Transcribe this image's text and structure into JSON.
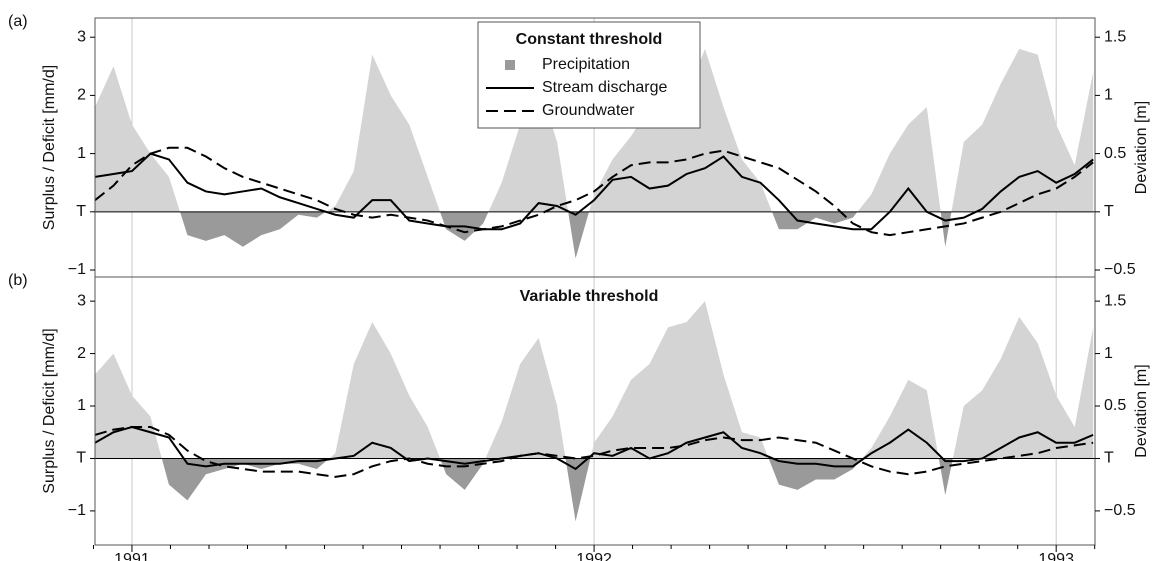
{
  "chart_data": [
    {
      "type": "line",
      "panel_label": "(a)",
      "title": "Constant threshold",
      "legend": true,
      "ylabel": "Surplus / Deficit [mm/d]",
      "y2label": "Deviation [m]",
      "xlim": [
        1990.92,
        1993.084
      ],
      "xgrid_lines": [
        1991,
        1992,
        1993
      ],
      "ylim": [
        -1.12,
        3.33
      ],
      "yticks": [
        {
          "value": -1,
          "label": "−1"
        },
        {
          "value": 0,
          "label": "T"
        },
        1,
        2,
        3
      ],
      "y2lim": [
        -0.56,
        1.665
      ],
      "y2ticks": [
        {
          "value": -0.5,
          "label": "−0.5"
        },
        {
          "value": 0,
          "label": "T"
        },
        0.5,
        1,
        1.5
      ],
      "x": [
        1990.92,
        1990.96,
        1991.0,
        1991.04,
        1991.08,
        1991.12,
        1991.16,
        1991.2,
        1991.24,
        1991.28,
        1991.32,
        1991.36,
        1991.4,
        1991.44,
        1991.48,
        1991.52,
        1991.56,
        1991.6,
        1991.64,
        1991.68,
        1991.72,
        1991.76,
        1991.8,
        1991.84,
        1991.88,
        1991.92,
        1991.96,
        1992.0,
        1992.04,
        1992.08,
        1992.12,
        1992.16,
        1992.2,
        1992.24,
        1992.28,
        1992.32,
        1992.36,
        1992.4,
        1992.44,
        1992.48,
        1992.52,
        1992.56,
        1992.6,
        1992.64,
        1992.68,
        1992.72,
        1992.76,
        1992.8,
        1992.84,
        1992.88,
        1992.92,
        1992.96,
        1993.0,
        1993.04,
        1993.08
      ],
      "series": [
        {
          "name": "Precipitation",
          "style": "area",
          "color": "#d4d4d4",
          "negative_color": "#9a9a9a",
          "values": [
            1.8,
            2.5,
            1.5,
            1.0,
            0.6,
            -0.4,
            -0.5,
            -0.4,
            -0.6,
            -0.4,
            -0.3,
            -0.05,
            -0.1,
            0.1,
            0.7,
            2.7,
            2.0,
            1.5,
            0.6,
            -0.3,
            -0.5,
            -0.2,
            0.5,
            1.5,
            2.2,
            1.2,
            -0.8,
            0.3,
            0.9,
            1.3,
            1.8,
            2.3,
            2.0,
            2.8,
            1.8,
            0.9,
            0.5,
            -0.3,
            -0.3,
            -0.1,
            -0.2,
            -0.1,
            0.3,
            1.0,
            1.5,
            1.8,
            -0.6,
            1.2,
            1.5,
            2.2,
            2.8,
            2.7,
            1.5,
            0.8,
            2.4
          ]
        },
        {
          "name": "Stream discharge",
          "style": "solid",
          "color": "#000000",
          "values": [
            0.6,
            0.65,
            0.7,
            1.0,
            0.9,
            0.5,
            0.35,
            0.3,
            0.35,
            0.4,
            0.25,
            0.15,
            0.05,
            -0.05,
            -0.1,
            0.2,
            0.2,
            -0.15,
            -0.2,
            -0.25,
            -0.25,
            -0.3,
            -0.3,
            -0.2,
            0.15,
            0.1,
            -0.05,
            0.2,
            0.55,
            0.6,
            0.4,
            0.45,
            0.65,
            0.75,
            0.95,
            0.6,
            0.5,
            0.2,
            -0.15,
            -0.2,
            -0.25,
            -0.3,
            -0.3,
            0.0,
            0.4,
            0.0,
            -0.15,
            -0.1,
            0.05,
            0.35,
            0.6,
            0.7,
            0.5,
            0.65,
            0.9
          ]
        },
        {
          "name": "Groundwater",
          "style": "dashed",
          "color": "#000000",
          "axis": "y2",
          "values": [
            0.1,
            0.225,
            0.4,
            0.5,
            0.55,
            0.55,
            0.475,
            0.375,
            0.3,
            0.25,
            0.2,
            0.15,
            0.1,
            0.025,
            -0.025,
            -0.05,
            -0.025,
            -0.05,
            -0.075,
            -0.125,
            -0.175,
            -0.15,
            -0.125,
            -0.075,
            -0.025,
            0.05,
            0.1,
            0.175,
            0.3,
            0.4,
            0.425,
            0.425,
            0.45,
            0.5,
            0.525,
            0.475,
            0.425,
            0.375,
            0.275,
            0.175,
            0.05,
            -0.1,
            -0.175,
            -0.2,
            -0.175,
            -0.15,
            -0.125,
            -0.1,
            -0.05,
            0,
            0.075,
            0.15,
            0.2,
            0.3,
            0.425
          ]
        }
      ]
    },
    {
      "type": "line",
      "panel_label": "(b)",
      "title": "Variable threshold",
      "legend": false,
      "ylabel": "Surplus / Deficit [mm/d]",
      "y2label": "Deviation [m]",
      "xlim": [
        1990.92,
        1993.084
      ],
      "xticks": [
        1991,
        1992,
        1993
      ],
      "xminorticks": [
        1990.9167,
        1991.0833,
        1991.1667,
        1991.25,
        1991.3333,
        1991.4167,
        1991.5,
        1991.5833,
        1991.6667,
        1991.75,
        1991.8333,
        1991.9167,
        1992.0833,
        1992.1667,
        1992.25,
        1992.3333,
        1992.4167,
        1992.5,
        1992.5833,
        1992.6667,
        1992.75,
        1992.8333,
        1992.9167,
        1993.0833
      ],
      "ylim": [
        -1.65,
        3.46
      ],
      "yticks": [
        {
          "value": -1,
          "label": "−1"
        },
        {
          "value": 0,
          "label": "T"
        },
        1,
        2,
        3
      ],
      "y2lim": [
        -0.825,
        1.73
      ],
      "y2ticks": [
        {
          "value": -0.5,
          "label": "−0.5"
        },
        {
          "value": 0,
          "label": "T"
        },
        0.5,
        1,
        1.5
      ],
      "x": [
        1990.92,
        1990.96,
        1991.0,
        1991.04,
        1991.08,
        1991.12,
        1991.16,
        1991.2,
        1991.24,
        1991.28,
        1991.32,
        1991.36,
        1991.4,
        1991.44,
        1991.48,
        1991.52,
        1991.56,
        1991.6,
        1991.64,
        1991.68,
        1991.72,
        1991.76,
        1991.8,
        1991.84,
        1991.88,
        1991.92,
        1991.96,
        1992.0,
        1992.04,
        1992.08,
        1992.12,
        1992.16,
        1992.2,
        1992.24,
        1992.28,
        1992.32,
        1992.36,
        1992.4,
        1992.44,
        1992.48,
        1992.52,
        1992.56,
        1992.6,
        1992.64,
        1992.68,
        1992.72,
        1992.76,
        1992.8,
        1992.84,
        1992.88,
        1992.92,
        1992.96,
        1993.0,
        1993.04,
        1993.08
      ],
      "series": [
        {
          "style": "area",
          "color": "#d4d4d4",
          "negative_color": "#9a9a9a",
          "values": [
            1.6,
            2.0,
            1.2,
            0.8,
            -0.5,
            -0.8,
            -0.3,
            -0.2,
            -0.1,
            -0.2,
            -0.1,
            -0.1,
            -0.2,
            0.1,
            1.8,
            2.6,
            2.0,
            1.2,
            0.6,
            -0.3,
            -0.6,
            -0.1,
            0.7,
            1.8,
            2.3,
            1.0,
            -1.2,
            0.3,
            0.8,
            1.5,
            1.8,
            2.5,
            2.6,
            3.0,
            1.6,
            0.5,
            0.4,
            -0.5,
            -0.6,
            -0.4,
            -0.4,
            -0.2,
            0.2,
            0.8,
            1.5,
            1.3,
            -0.7,
            1.0,
            1.3,
            1.9,
            2.7,
            2.2,
            1.2,
            0.6,
            2.5
          ]
        },
        {
          "style": "solid",
          "color": "#000000",
          "values": [
            0.3,
            0.5,
            0.6,
            0.5,
            0.4,
            -0.1,
            -0.15,
            -0.1,
            -0.1,
            -0.1,
            -0.1,
            -0.05,
            -0.05,
            0.0,
            0.05,
            0.3,
            0.2,
            -0.05,
            0.0,
            -0.05,
            -0.1,
            -0.05,
            0.0,
            0.05,
            0.1,
            0.0,
            -0.2,
            0.1,
            0.05,
            0.2,
            0.0,
            0.1,
            0.3,
            0.4,
            0.5,
            0.2,
            0.1,
            -0.05,
            -0.1,
            -0.1,
            -0.15,
            -0.15,
            0.1,
            0.3,
            0.55,
            0.3,
            -0.05,
            -0.05,
            0.0,
            0.2,
            0.4,
            0.5,
            0.3,
            0.3,
            0.45
          ]
        },
        {
          "style": "dashed",
          "color": "#000000",
          "axis": "y2",
          "values": [
            0.225,
            0.275,
            0.3,
            0.3,
            0.225,
            0.075,
            -0.025,
            -0.075,
            -0.1,
            -0.125,
            -0.125,
            -0.125,
            -0.15,
            -0.175,
            -0.15,
            -0.075,
            -0.025,
            0,
            -0.05,
            -0.075,
            -0.075,
            -0.05,
            -0.025,
            0.025,
            0.05,
            0.025,
            0,
            0.025,
            0.075,
            0.1,
            0.1,
            0.1,
            0.125,
            0.175,
            0.2,
            0.175,
            0.175,
            0.2,
            0.175,
            0.15,
            0.075,
            0,
            -0.075,
            -0.125,
            -0.15,
            -0.125,
            -0.075,
            -0.05,
            -0.025,
            0,
            0.025,
            0.05,
            0.1,
            0.125,
            0.15
          ]
        }
      ]
    }
  ]
}
